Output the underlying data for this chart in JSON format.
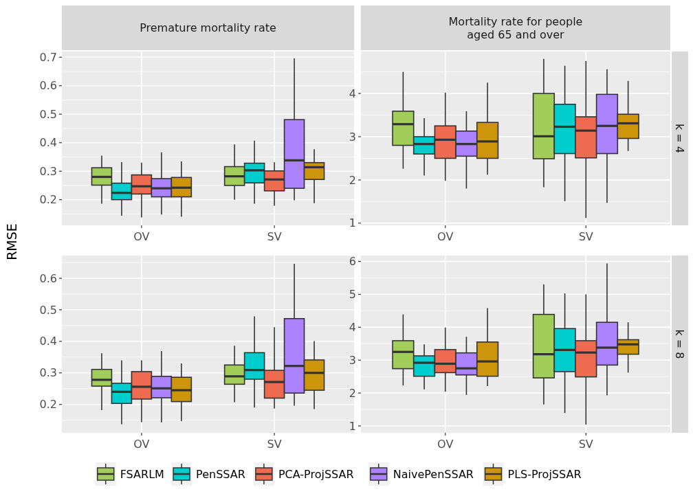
{
  "chart_data": [
    {
      "type": "box",
      "title": "Premature mortality rate",
      "ylabel": "RMSE",
      "categories": [
        "OV",
        "SV"
      ],
      "ylim": [
        0.11,
        0.72
      ],
      "yticks": [
        0.2,
        0.3,
        0.4,
        0.5,
        0.6,
        0.7
      ],
      "grid": true,
      "legend": "bottom",
      "series": [
        {
          "name": "FSARLM",
          "color": "#a2cd5a",
          "boxes": [
            {
              "low": 0.186,
              "q1": 0.251,
              "median": 0.28,
              "q3": 0.312,
              "high": 0.355
            },
            {
              "low": 0.2,
              "q1": 0.25,
              "median": 0.282,
              "q3": 0.316,
              "high": 0.394
            }
          ]
        },
        {
          "name": "PenSSAR",
          "color": "#00cdcd",
          "boxes": [
            {
              "low": 0.144,
              "q1": 0.2,
              "median": 0.224,
              "q3": 0.258,
              "high": 0.332
            },
            {
              "low": 0.186,
              "q1": 0.259,
              "median": 0.303,
              "q3": 0.328,
              "high": 0.407
            }
          ]
        },
        {
          "name": "PCA-ProjSSAR",
          "color": "#ee6a50",
          "boxes": [
            {
              "low": 0.138,
              "q1": 0.22,
              "median": 0.247,
              "q3": 0.287,
              "high": 0.33
            },
            {
              "low": 0.179,
              "q1": 0.231,
              "median": 0.271,
              "q3": 0.301,
              "high": 0.331
            }
          ]
        },
        {
          "name": "NaivePenSSAR",
          "color": "#ab82ff",
          "boxes": [
            {
              "low": 0.148,
              "q1": 0.21,
              "median": 0.24,
              "q3": 0.274,
              "high": 0.366
            },
            {
              "low": 0.198,
              "q1": 0.24,
              "median": 0.338,
              "q3": 0.481,
              "high": 0.696
            }
          ]
        },
        {
          "name": "PLS-ProjSSAR",
          "color": "#cd950c",
          "boxes": [
            {
              "low": 0.14,
              "q1": 0.21,
              "median": 0.242,
              "q3": 0.278,
              "high": 0.334
            },
            {
              "low": 0.188,
              "q1": 0.271,
              "median": 0.314,
              "q3": 0.33,
              "high": 0.377
            }
          ]
        }
      ]
    },
    {
      "type": "box",
      "title": "Mortality rate for people aged 65 and over",
      "subtitle": "k = 4",
      "categories": [
        "OV",
        "SV"
      ],
      "ylim": [
        0.95,
        4.97
      ],
      "yticks": [
        1,
        2,
        3,
        4
      ],
      "grid": true,
      "series": [
        {
          "color": "#a2cd5a",
          "boxes": [
            {
              "low": 2.26,
              "q1": 2.8,
              "median": 3.29,
              "q3": 3.59,
              "high": 4.5
            },
            {
              "low": 1.83,
              "q1": 2.49,
              "median": 3.01,
              "q3": 4.0,
              "high": 4.8
            }
          ]
        },
        {
          "color": "#00cdcd",
          "boxes": [
            {
              "low": 2.1,
              "q1": 2.6,
              "median": 2.83,
              "q3": 3.0,
              "high": 3.43
            },
            {
              "low": 1.51,
              "q1": 2.61,
              "median": 3.23,
              "q3": 3.75,
              "high": 4.64
            }
          ]
        },
        {
          "color": "#ee6a50",
          "boxes": [
            {
              "low": 1.98,
              "q1": 2.5,
              "median": 2.93,
              "q3": 3.25,
              "high": 4.02
            },
            {
              "low": 1.12,
              "q1": 2.51,
              "median": 3.14,
              "q3": 3.46,
              "high": 4.75
            }
          ]
        },
        {
          "color": "#ab82ff",
          "boxes": [
            {
              "low": 1.8,
              "q1": 2.55,
              "median": 2.83,
              "q3": 3.13,
              "high": 3.59
            },
            {
              "low": 1.47,
              "q1": 2.61,
              "median": 3.25,
              "q3": 3.98,
              "high": 4.56
            }
          ]
        },
        {
          "color": "#cd950c",
          "boxes": [
            {
              "low": 2.12,
              "q1": 2.5,
              "median": 2.89,
              "q3": 3.33,
              "high": 4.25
            },
            {
              "low": 2.67,
              "q1": 2.96,
              "median": 3.31,
              "q3": 3.52,
              "high": 4.29
            }
          ]
        }
      ]
    },
    {
      "type": "box",
      "categories": [
        "OV",
        "SV"
      ],
      "ylim": [
        0.11,
        0.672
      ],
      "yticks": [
        0.2,
        0.3,
        0.4,
        0.5,
        0.6
      ],
      "grid": true,
      "series": [
        {
          "color": "#a2cd5a",
          "boxes": [
            {
              "low": 0.182,
              "q1": 0.258,
              "median": 0.278,
              "q3": 0.311,
              "high": 0.362
            },
            {
              "low": 0.207,
              "q1": 0.264,
              "median": 0.289,
              "q3": 0.325,
              "high": 0.386
            }
          ]
        },
        {
          "color": "#00cdcd",
          "boxes": [
            {
              "low": 0.137,
              "q1": 0.203,
              "median": 0.24,
              "q3": 0.267,
              "high": 0.34
            },
            {
              "low": 0.19,
              "q1": 0.28,
              "median": 0.309,
              "q3": 0.364,
              "high": 0.479
            }
          ]
        },
        {
          "color": "#ee6a50",
          "boxes": [
            {
              "low": 0.144,
              "q1": 0.217,
              "median": 0.256,
              "q3": 0.304,
              "high": 0.34
            },
            {
              "low": 0.187,
              "q1": 0.22,
              "median": 0.271,
              "q3": 0.308,
              "high": 0.445
            }
          ]
        },
        {
          "color": "#ab82ff",
          "boxes": [
            {
              "low": 0.143,
              "q1": 0.221,
              "median": 0.251,
              "q3": 0.289,
              "high": 0.369
            },
            {
              "low": 0.196,
              "q1": 0.236,
              "median": 0.322,
              "q3": 0.472,
              "high": 0.646
            }
          ]
        },
        {
          "color": "#cd950c",
          "boxes": [
            {
              "low": 0.147,
              "q1": 0.209,
              "median": 0.245,
              "q3": 0.286,
              "high": 0.33
            },
            {
              "low": 0.185,
              "q1": 0.245,
              "median": 0.3,
              "q3": 0.341,
              "high": 0.401
            }
          ]
        }
      ]
    },
    {
      "type": "box",
      "subtitle": "k = 8",
      "categories": [
        "OV",
        "SV"
      ],
      "ylim": [
        0.79,
        6.18
      ],
      "yticks": [
        1,
        2,
        3,
        4,
        5,
        6
      ],
      "grid": true,
      "series": [
        {
          "color": "#a2cd5a",
          "boxes": [
            {
              "low": 2.23,
              "q1": 2.74,
              "median": 3.25,
              "q3": 3.59,
              "high": 4.39
            },
            {
              "low": 1.65,
              "q1": 2.46,
              "median": 3.18,
              "q3": 4.39,
              "high": 5.3
            }
          ]
        },
        {
          "color": "#00cdcd",
          "boxes": [
            {
              "low": 2.11,
              "q1": 2.51,
              "median": 2.92,
              "q3": 3.13,
              "high": 3.48
            },
            {
              "low": 1.39,
              "q1": 2.65,
              "median": 3.31,
              "q3": 3.96,
              "high": 5.03
            }
          ]
        },
        {
          "color": "#ee6a50",
          "boxes": [
            {
              "low": 2.04,
              "q1": 2.62,
              "median": 2.89,
              "q3": 3.32,
              "high": 3.99
            },
            {
              "low": 1.04,
              "q1": 2.49,
              "median": 3.23,
              "q3": 3.59,
              "high": 5.0
            }
          ]
        },
        {
          "color": "#ab82ff",
          "boxes": [
            {
              "low": 1.94,
              "q1": 2.55,
              "median": 2.75,
              "q3": 3.22,
              "high": 3.71
            },
            {
              "low": 1.93,
              "q1": 2.85,
              "median": 3.38,
              "q3": 4.15,
              "high": 5.94
            }
          ]
        },
        {
          "color": "#cd950c",
          "boxes": [
            {
              "low": 2.21,
              "q1": 2.51,
              "median": 2.96,
              "q3": 3.55,
              "high": 4.58
            },
            {
              "low": 2.62,
              "q1": 3.18,
              "median": 3.48,
              "q3": 3.62,
              "high": 4.15
            }
          ]
        }
      ]
    }
  ]
}
